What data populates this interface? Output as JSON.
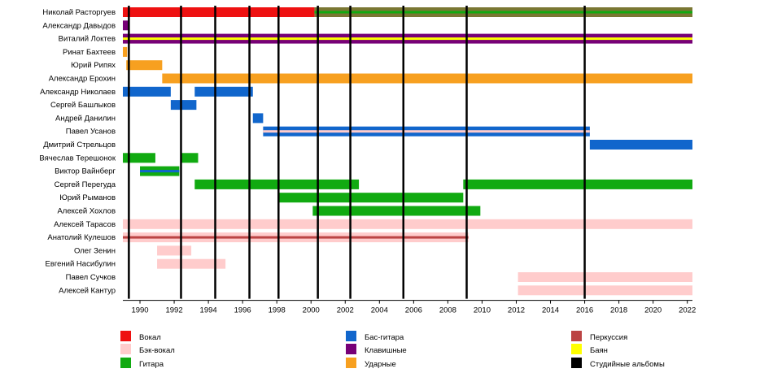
{
  "chart_data": {
    "type": "timeline",
    "x_range": [
      1989.0,
      2022.3
    ],
    "x_ticks": [
      "1990",
      "1992",
      "1994",
      "1996",
      "1998",
      "2000",
      "2002",
      "2004",
      "2006",
      "2008",
      "2010",
      "2012",
      "2014",
      "2016",
      "2018",
      "2020",
      "2022"
    ],
    "members": [
      "Николай Расторгуев",
      "Александр Давыдов",
      "Виталий Локтев",
      "Ринат Бахтеев",
      "Юрий Рипях",
      "Александр Ерохин",
      "Александр Николаев",
      "Сергей Башлыков",
      "Андрей Данилин",
      "Павел Усанов",
      "Дмитрий Стрельцов",
      "Вячеслав Терешонок",
      "Виктор Вайнберг",
      "Сергей Перегуда",
      "Юрий Рыманов",
      "Алексей Хохлов",
      "Алексей Тарасов",
      "Анатолий Кулешов",
      "Олег Зенин",
      "Евгений Насибулин",
      "Павел Сучков",
      "Алексей Кантур"
    ],
    "roles": {
      "vocal": {
        "label": "Вокал",
        "color": "#ee1111"
      },
      "backvocal": {
        "label": "Бэк-вокал",
        "color": "#ffcccc"
      },
      "guitar": {
        "label": "Гитара",
        "color": "#11aa11"
      },
      "bass": {
        "label": "Бас-гитара",
        "color": "#1166cc"
      },
      "keys": {
        "label": "Клавишные",
        "color": "#770077"
      },
      "drums": {
        "label": "Ударные",
        "color": "#f7a020"
      },
      "percussion": {
        "label": "Перкуссия",
        "color": "#bb4444"
      },
      "bayan": {
        "label": "Баян",
        "color": "#ffff00"
      },
      "albums": {
        "label": "Студийные альбомы",
        "color": "#000000"
      }
    },
    "legend_order": [
      [
        "vocal",
        "backvocal",
        "guitar"
      ],
      [
        "bass",
        "keys",
        "drums"
      ],
      [
        "percussion",
        "bayan",
        "albums"
      ]
    ],
    "bars": [
      {
        "member": 0,
        "role": "vocal",
        "start": 1989.0,
        "end": 2000.2
      },
      {
        "member": 0,
        "role": "vocal",
        "start": 2000.2,
        "end": 2022.3,
        "overlay": "guitar",
        "mix": "#7a7733"
      },
      {
        "member": 1,
        "role": "keys",
        "start": 1989.0,
        "end": 1989.3
      },
      {
        "member": 2,
        "role": "keys",
        "start": 1989.0,
        "end": 2022.3,
        "overlay": "bayan"
      },
      {
        "member": 3,
        "role": "drums",
        "start": 1989.0,
        "end": 1989.25
      },
      {
        "member": 4,
        "role": "drums",
        "start": 1989.2,
        "end": 1991.3
      },
      {
        "member": 5,
        "role": "drums",
        "start": 1991.3,
        "end": 2022.3
      },
      {
        "member": 6,
        "role": "bass",
        "start": 1989.0,
        "end": 1991.8
      },
      {
        "member": 6,
        "role": "bass",
        "start": 1993.2,
        "end": 1996.6
      },
      {
        "member": 7,
        "role": "bass",
        "start": 1991.8,
        "end": 1993.3
      },
      {
        "member": 8,
        "role": "bass",
        "start": 1996.6,
        "end": 1997.2
      },
      {
        "member": 9,
        "role": "bass",
        "start": 1997.2,
        "end": 2016.3,
        "overlay": "backvocal"
      },
      {
        "member": 10,
        "role": "bass",
        "start": 2016.3,
        "end": 2022.3
      },
      {
        "member": 11,
        "role": "guitar",
        "start": 1989.0,
        "end": 1990.9
      },
      {
        "member": 11,
        "role": "guitar",
        "start": 1992.4,
        "end": 1993.4
      },
      {
        "member": 12,
        "role": "guitar",
        "start": 1990.0,
        "end": 1992.3,
        "overlay": "bass"
      },
      {
        "member": 13,
        "role": "guitar",
        "start": 1993.2,
        "end": 2002.8
      },
      {
        "member": 13,
        "role": "guitar",
        "start": 2008.9,
        "end": 2022.3
      },
      {
        "member": 14,
        "role": "guitar",
        "start": 1998.1,
        "end": 2008.9
      },
      {
        "member": 15,
        "role": "guitar",
        "start": 2000.1,
        "end": 2009.9
      },
      {
        "member": 16,
        "role": "backvocal",
        "start": 1989.0,
        "end": 2022.3
      },
      {
        "member": 17,
        "role": "backvocal",
        "start": 1989.0,
        "end": 2009.2,
        "overlay": "percussion"
      },
      {
        "member": 18,
        "role": "backvocal",
        "start": 1991.0,
        "end": 1993.0
      },
      {
        "member": 19,
        "role": "backvocal",
        "start": 1991.0,
        "end": 1995.0
      },
      {
        "member": 20,
        "role": "backvocal",
        "start": 2012.1,
        "end": 2022.3
      },
      {
        "member": 21,
        "role": "backvocal",
        "start": 2012.1,
        "end": 2022.3
      }
    ],
    "album_lines": [
      1989.35,
      1992.4,
      1994.4,
      1996.4,
      1998.1,
      2000.4,
      2002.3,
      2005.4,
      2009.1,
      2016.0
    ]
  }
}
